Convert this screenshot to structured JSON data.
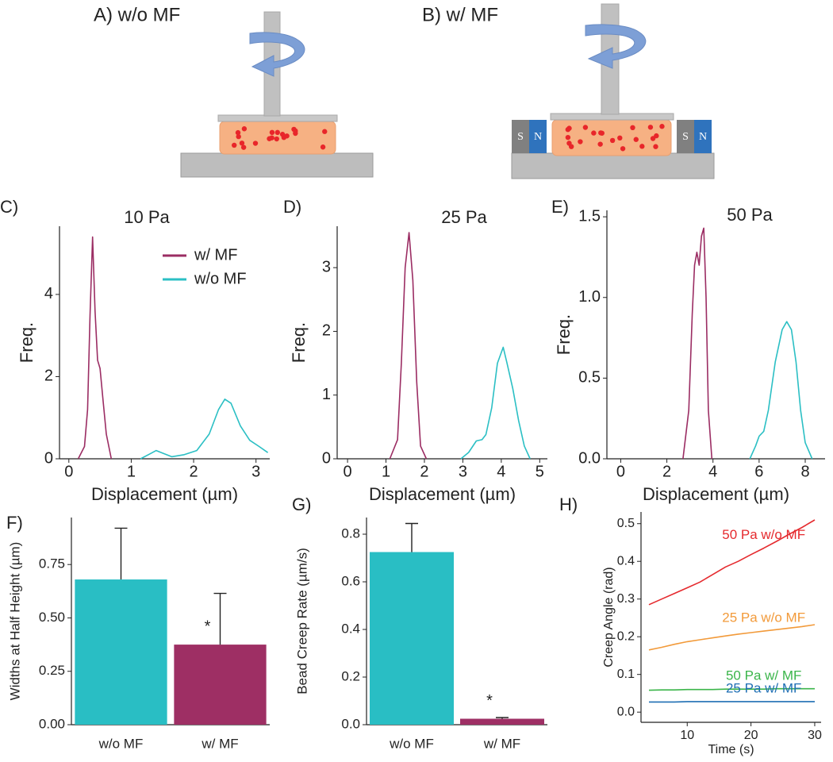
{
  "diagrams": [
    {
      "label": "A) w/o MF"
    },
    {
      "label": "B) w/ MF",
      "magnets": [
        [
          "S",
          "N"
        ],
        [
          "S",
          "N"
        ]
      ]
    }
  ],
  "chart_data": [
    {
      "type": "line",
      "panel": "C)",
      "title": "10 Pa",
      "xlabel": "Displacement (µm)",
      "ylabel": "Freq.",
      "xlim": [
        -0.15,
        3.22
      ],
      "xticks": [
        0,
        1,
        2,
        3
      ],
      "ylim": [
        0,
        5.66
      ],
      "yticks": [
        0,
        2,
        4
      ],
      "legend": "center right",
      "series": [
        {
          "name": "w/ MF",
          "color": "#9b2d63",
          "x": [
            0.15,
            0.25,
            0.3,
            0.34,
            0.38,
            0.42,
            0.46,
            0.5,
            0.55,
            0.6,
            0.68
          ],
          "values": [
            0,
            0.3,
            1.2,
            3.5,
            5.4,
            3.6,
            2.4,
            2.2,
            1.4,
            0.6,
            0
          ]
        },
        {
          "name": "w/o MF",
          "color": "#2bbfc4",
          "x": [
            1.15,
            1.3,
            1.4,
            1.5,
            1.65,
            1.85,
            2.05,
            2.25,
            2.4,
            2.5,
            2.6,
            2.75,
            2.9,
            3.05,
            3.19
          ],
          "values": [
            0,
            0.12,
            0.2,
            0.14,
            0.05,
            0.1,
            0.2,
            0.6,
            1.2,
            1.45,
            1.35,
            0.8,
            0.45,
            0.3,
            0.15
          ]
        }
      ]
    },
    {
      "type": "line",
      "panel": "D)",
      "title": "25 Pa",
      "xlabel": "Displacement (µm)",
      "ylabel": "Freq.",
      "xlim": [
        -0.27,
        5.2
      ],
      "xticks": [
        0,
        1,
        2,
        3,
        4,
        5
      ],
      "ylim": [
        0,
        3.65
      ],
      "yticks": [
        0,
        1,
        2,
        3
      ],
      "series": [
        {
          "color": "#9b2d63",
          "x": [
            1.1,
            1.3,
            1.4,
            1.5,
            1.6,
            1.7,
            1.8,
            1.9,
            2.05
          ],
          "values": [
            0,
            0.3,
            1.5,
            3.0,
            3.55,
            2.8,
            1.2,
            0.2,
            0
          ]
        },
        {
          "color": "#2bbfc4",
          "x": [
            2.95,
            3.15,
            3.35,
            3.5,
            3.6,
            3.75,
            3.9,
            4.05,
            4.15,
            4.3,
            4.45,
            4.6,
            4.75
          ],
          "values": [
            0,
            0.1,
            0.28,
            0.3,
            0.38,
            0.8,
            1.5,
            1.75,
            1.5,
            1.1,
            0.6,
            0.2,
            0
          ]
        }
      ]
    },
    {
      "type": "line",
      "panel": "E)",
      "title": "50 Pa",
      "xlabel": "Displacement (µm)",
      "ylabel": "Freq.",
      "xlim": [
        -0.6,
        8.86
      ],
      "xticks": [
        0,
        2,
        4,
        6,
        8
      ],
      "ylim": [
        0,
        1.54
      ],
      "yticks": [
        {
          "value": 0,
          "label": "0.0"
        },
        0.5,
        {
          "value": 1,
          "label": "1.0"
        },
        1.5
      ],
      "series": [
        {
          "color": "#9b2d63",
          "x": [
            2.7,
            2.95,
            3.1,
            3.2,
            3.3,
            3.4,
            3.5,
            3.6,
            3.7,
            3.8,
            3.95
          ],
          "values": [
            0,
            0.3,
            0.9,
            1.2,
            1.28,
            1.2,
            1.38,
            1.43,
            1.0,
            0.3,
            0
          ]
        },
        {
          "color": "#2bbfc4",
          "x": [
            5.6,
            5.85,
            6.0,
            6.2,
            6.4,
            6.7,
            7.0,
            7.2,
            7.4,
            7.6,
            7.8,
            8.0,
            8.3
          ],
          "values": [
            0,
            0.08,
            0.14,
            0.17,
            0.3,
            0.6,
            0.8,
            0.85,
            0.8,
            0.6,
            0.3,
            0.1,
            0
          ]
        }
      ]
    },
    {
      "type": "bar",
      "panel": "F)",
      "ylabel": "Widths at Half Height (µm)",
      "categories": [
        "w/o MF",
        "w/ MF"
      ],
      "values": [
        0.68,
        0.375
      ],
      "errors": [
        0.24,
        0.24
      ],
      "colors": [
        "#29bec4",
        "#9e2f64"
      ],
      "significance": [
        null,
        "*"
      ],
      "ylim": [
        0,
        0.97
      ],
      "yticks": [
        {
          "value": 0,
          "label": "0.00"
        },
        0.25,
        {
          "value": 0.5,
          "label": "0.50"
        },
        0.75
      ]
    },
    {
      "type": "bar",
      "panel": "G)",
      "ylabel": "Bead Creep Rate (µm/s)",
      "categories": [
        "w/o MF",
        "w/ MF"
      ],
      "values": [
        0.725,
        0.025
      ],
      "errors": [
        0.12,
        0.005
      ],
      "colors": [
        "#29bec4",
        "#9e2f64"
      ],
      "significance": [
        null,
        "*"
      ],
      "ylim": [
        0,
        0.87
      ],
      "yticks": [
        {
          "value": 0,
          "label": "0.0"
        },
        0.2,
        0.4,
        0.6,
        0.8
      ]
    },
    {
      "type": "line",
      "panel": "H)",
      "xlabel": "Time (s)",
      "ylabel": "Creep Angle (rad)",
      "legend": "inline",
      "xlim": [
        2.75,
        31
      ],
      "xticks": [
        10,
        20,
        30
      ],
      "ylim": [
        -0.027,
        0.531
      ],
      "yticks": [
        {
          "value": 0,
          "label": "0.0"
        },
        0.1,
        0.2,
        0.3,
        0.4,
        0.5
      ],
      "x": [
        4,
        6,
        8,
        10,
        12,
        14,
        16,
        18,
        20,
        22,
        24,
        26,
        28,
        30
      ],
      "series": [
        {
          "name": "50 Pa w/o MF",
          "color": "#e52a2e",
          "values": [
            0.285,
            0.3,
            0.315,
            0.33,
            0.345,
            0.365,
            0.385,
            0.4,
            0.418,
            0.435,
            0.453,
            0.472,
            0.49,
            0.51
          ]
        },
        {
          "name": "25 Pa w/o MF",
          "color": "#f29a3a",
          "values": [
            0.165,
            0.172,
            0.18,
            0.187,
            0.192,
            0.197,
            0.202,
            0.207,
            0.211,
            0.215,
            0.219,
            0.223,
            0.227,
            0.232
          ]
        },
        {
          "name": "50 Pa w/ MF",
          "color": "#3bb54a",
          "values": [
            0.058,
            0.059,
            0.059,
            0.06,
            0.06,
            0.06,
            0.061,
            0.061,
            0.061,
            0.061,
            0.062,
            0.062,
            0.062,
            0.062
          ]
        },
        {
          "name": "25 Pa w/ MF",
          "color": "#1f6fb4",
          "values": [
            0.027,
            0.027,
            0.027,
            0.028,
            0.028,
            0.028,
            0.028,
            0.028,
            0.028,
            0.028,
            0.028,
            0.028,
            0.028,
            0.028
          ]
        }
      ]
    }
  ]
}
